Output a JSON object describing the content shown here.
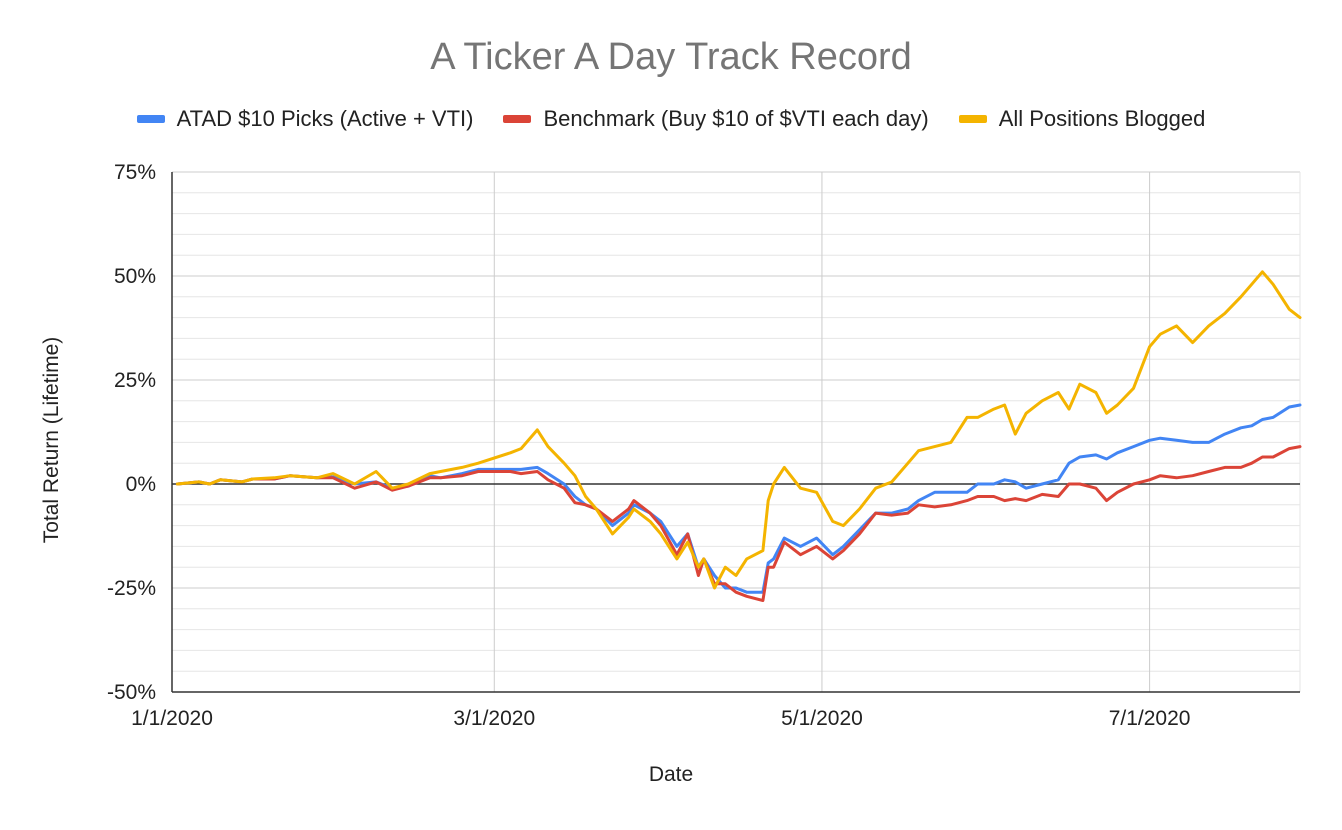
{
  "chart_data": {
    "type": "line",
    "title": "A Ticker A Day Track Record",
    "xlabel": "Date",
    "ylabel": "Total Return (Lifetime)",
    "ylim": [
      -50,
      75
    ],
    "y_ticks": [
      75,
      50,
      25,
      0,
      -25,
      -50
    ],
    "y_tick_labels": [
      "75%",
      "50%",
      "25%",
      "0%",
      "-25%",
      "-50%"
    ],
    "x_ticks": [
      "1/1/2020",
      "3/1/2020",
      "5/1/2020",
      "7/1/2020"
    ],
    "x_range": [
      "2020-01-01",
      "2020-07-29"
    ],
    "grid": true,
    "legend_position": "top",
    "series": [
      {
        "name": "ATAD $10 Picks (Active + VTI)",
        "color": "#4285f4",
        "points": [
          [
            "2020-01-02",
            0
          ],
          [
            "2020-01-06",
            0.5
          ],
          [
            "2020-01-08",
            0
          ],
          [
            "2020-01-10",
            1
          ],
          [
            "2020-01-14",
            0.5
          ],
          [
            "2020-01-16",
            1.2
          ],
          [
            "2020-01-20",
            1.2
          ],
          [
            "2020-01-23",
            2
          ],
          [
            "2020-01-28",
            1.5
          ],
          [
            "2020-01-31",
            1.7
          ],
          [
            "2020-02-04",
            0
          ],
          [
            "2020-02-08",
            0.5
          ],
          [
            "2020-02-11",
            -1
          ],
          [
            "2020-02-14",
            -0.5
          ],
          [
            "2020-02-18",
            2
          ],
          [
            "2020-02-20",
            1.5
          ],
          [
            "2020-02-24",
            2.5
          ],
          [
            "2020-02-27",
            3.5
          ],
          [
            "2020-03-04",
            3.5
          ],
          [
            "2020-03-06",
            3.5
          ],
          [
            "2020-03-09",
            4
          ],
          [
            "2020-03-11",
            2.5
          ],
          [
            "2020-03-14",
            0
          ],
          [
            "2020-03-16",
            -3
          ],
          [
            "2020-03-18",
            -5
          ],
          [
            "2020-03-20",
            -6
          ],
          [
            "2020-03-23",
            -10
          ],
          [
            "2020-03-26",
            -7
          ],
          [
            "2020-03-27",
            -5
          ],
          [
            "2020-03-30",
            -7
          ],
          [
            "2020-04-01",
            -9
          ],
          [
            "2020-04-04",
            -15
          ],
          [
            "2020-04-06",
            -12
          ],
          [
            "2020-04-08",
            -20
          ],
          [
            "2020-04-09",
            -18
          ],
          [
            "2020-04-11",
            -22
          ],
          [
            "2020-04-13",
            -25
          ],
          [
            "2020-04-15",
            -25
          ],
          [
            "2020-04-17",
            -26
          ],
          [
            "2020-04-20",
            -26
          ],
          [
            "2020-04-21",
            -19
          ],
          [
            "2020-04-22",
            -18
          ],
          [
            "2020-04-24",
            -13
          ],
          [
            "2020-04-27",
            -15
          ],
          [
            "2020-04-30",
            -13
          ],
          [
            "2020-05-03",
            -17
          ],
          [
            "2020-05-05",
            -15
          ],
          [
            "2020-05-08",
            -11
          ],
          [
            "2020-05-11",
            -7
          ],
          [
            "2020-05-14",
            -7
          ],
          [
            "2020-05-17",
            -6
          ],
          [
            "2020-05-19",
            -4
          ],
          [
            "2020-05-22",
            -2
          ],
          [
            "2020-05-25",
            -2
          ],
          [
            "2020-05-28",
            -2
          ],
          [
            "2020-05-30",
            0
          ],
          [
            "2020-06-02",
            0
          ],
          [
            "2020-06-04",
            1
          ],
          [
            "2020-06-06",
            0.5
          ],
          [
            "2020-06-08",
            -1
          ],
          [
            "2020-06-11",
            0
          ],
          [
            "2020-06-14",
            1
          ],
          [
            "2020-06-16",
            5
          ],
          [
            "2020-06-18",
            6.5
          ],
          [
            "2020-06-21",
            7
          ],
          [
            "2020-06-23",
            6
          ],
          [
            "2020-06-25",
            7.5
          ],
          [
            "2020-06-28",
            9
          ],
          [
            "2020-07-01",
            10.5
          ],
          [
            "2020-07-03",
            11
          ],
          [
            "2020-07-06",
            10.5
          ],
          [
            "2020-07-09",
            10
          ],
          [
            "2020-07-12",
            10
          ],
          [
            "2020-07-15",
            12
          ],
          [
            "2020-07-18",
            13.5
          ],
          [
            "2020-07-20",
            14
          ],
          [
            "2020-07-22",
            15.5
          ],
          [
            "2020-07-24",
            16
          ],
          [
            "2020-07-27",
            18.5
          ],
          [
            "2020-07-29",
            19
          ]
        ]
      },
      {
        "name": "Benchmark (Buy $10 of $VTI each day)",
        "color": "#db4437",
        "points": [
          [
            "2020-01-02",
            0
          ],
          [
            "2020-01-06",
            0.5
          ],
          [
            "2020-01-08",
            0
          ],
          [
            "2020-01-10",
            1
          ],
          [
            "2020-01-14",
            0.5
          ],
          [
            "2020-01-16",
            1.2
          ],
          [
            "2020-01-20",
            1.2
          ],
          [
            "2020-01-23",
            2
          ],
          [
            "2020-01-28",
            1.5
          ],
          [
            "2020-01-31",
            1.5
          ],
          [
            "2020-02-04",
            -1
          ],
          [
            "2020-02-08",
            0.5
          ],
          [
            "2020-02-11",
            -1.5
          ],
          [
            "2020-02-14",
            -0.5
          ],
          [
            "2020-02-18",
            1.5
          ],
          [
            "2020-02-20",
            1.5
          ],
          [
            "2020-02-24",
            2
          ],
          [
            "2020-02-27",
            3
          ],
          [
            "2020-03-04",
            3
          ],
          [
            "2020-03-06",
            2.5
          ],
          [
            "2020-03-09",
            3
          ],
          [
            "2020-03-11",
            1
          ],
          [
            "2020-03-14",
            -1
          ],
          [
            "2020-03-16",
            -4.5
          ],
          [
            "2020-03-18",
            -5
          ],
          [
            "2020-03-20",
            -6
          ],
          [
            "2020-03-23",
            -9
          ],
          [
            "2020-03-26",
            -6
          ],
          [
            "2020-03-27",
            -4
          ],
          [
            "2020-03-30",
            -7
          ],
          [
            "2020-04-01",
            -10
          ],
          [
            "2020-04-04",
            -17
          ],
          [
            "2020-04-06",
            -12
          ],
          [
            "2020-04-08",
            -22
          ],
          [
            "2020-04-09",
            -18
          ],
          [
            "2020-04-11",
            -24
          ],
          [
            "2020-04-13",
            -24
          ],
          [
            "2020-04-15",
            -26
          ],
          [
            "2020-04-17",
            -27
          ],
          [
            "2020-04-20",
            -28
          ],
          [
            "2020-04-21",
            -20
          ],
          [
            "2020-04-22",
            -20
          ],
          [
            "2020-04-24",
            -14
          ],
          [
            "2020-04-27",
            -17
          ],
          [
            "2020-04-30",
            -15
          ],
          [
            "2020-05-03",
            -18
          ],
          [
            "2020-05-05",
            -16
          ],
          [
            "2020-05-08",
            -12
          ],
          [
            "2020-05-11",
            -7
          ],
          [
            "2020-05-14",
            -7.5
          ],
          [
            "2020-05-17",
            -7
          ],
          [
            "2020-05-19",
            -5
          ],
          [
            "2020-05-22",
            -5.5
          ],
          [
            "2020-05-25",
            -5
          ],
          [
            "2020-05-28",
            -4
          ],
          [
            "2020-05-30",
            -3
          ],
          [
            "2020-06-02",
            -3
          ],
          [
            "2020-06-04",
            -4
          ],
          [
            "2020-06-06",
            -3.5
          ],
          [
            "2020-06-08",
            -4
          ],
          [
            "2020-06-11",
            -2.5
          ],
          [
            "2020-06-14",
            -3
          ],
          [
            "2020-06-16",
            0
          ],
          [
            "2020-06-18",
            0
          ],
          [
            "2020-06-21",
            -1
          ],
          [
            "2020-06-23",
            -4
          ],
          [
            "2020-06-25",
            -2
          ],
          [
            "2020-06-28",
            0
          ],
          [
            "2020-07-01",
            1
          ],
          [
            "2020-07-03",
            2
          ],
          [
            "2020-07-06",
            1.5
          ],
          [
            "2020-07-09",
            2
          ],
          [
            "2020-07-12",
            3
          ],
          [
            "2020-07-15",
            4
          ],
          [
            "2020-07-18",
            4
          ],
          [
            "2020-07-20",
            5
          ],
          [
            "2020-07-22",
            6.5
          ],
          [
            "2020-07-24",
            6.5
          ],
          [
            "2020-07-27",
            8.5
          ],
          [
            "2020-07-29",
            9
          ]
        ]
      },
      {
        "name": "All Positions Blogged",
        "color": "#f4b400",
        "points": [
          [
            "2020-01-02",
            0
          ],
          [
            "2020-01-06",
            0.5
          ],
          [
            "2020-01-08",
            0
          ],
          [
            "2020-01-10",
            1
          ],
          [
            "2020-01-14",
            0.5
          ],
          [
            "2020-01-16",
            1.2
          ],
          [
            "2020-01-20",
            1.5
          ],
          [
            "2020-01-23",
            2
          ],
          [
            "2020-01-28",
            1.5
          ],
          [
            "2020-01-31",
            2.5
          ],
          [
            "2020-02-04",
            0
          ],
          [
            "2020-02-08",
            3
          ],
          [
            "2020-02-11",
            -1
          ],
          [
            "2020-02-14",
            0
          ],
          [
            "2020-02-18",
            2.5
          ],
          [
            "2020-02-20",
            3
          ],
          [
            "2020-02-24",
            4
          ],
          [
            "2020-02-27",
            5
          ],
          [
            "2020-03-04",
            7.5
          ],
          [
            "2020-03-06",
            8.5
          ],
          [
            "2020-03-09",
            13
          ],
          [
            "2020-03-11",
            9
          ],
          [
            "2020-03-14",
            5
          ],
          [
            "2020-03-16",
            2
          ],
          [
            "2020-03-18",
            -3
          ],
          [
            "2020-03-20",
            -6
          ],
          [
            "2020-03-23",
            -12
          ],
          [
            "2020-03-26",
            -8
          ],
          [
            "2020-03-27",
            -6
          ],
          [
            "2020-03-30",
            -9
          ],
          [
            "2020-04-01",
            -12
          ],
          [
            "2020-04-04",
            -18
          ],
          [
            "2020-04-06",
            -14
          ],
          [
            "2020-04-08",
            -20
          ],
          [
            "2020-04-09",
            -18
          ],
          [
            "2020-04-11",
            -25
          ],
          [
            "2020-04-13",
            -20
          ],
          [
            "2020-04-15",
            -22
          ],
          [
            "2020-04-17",
            -18
          ],
          [
            "2020-04-20",
            -16
          ],
          [
            "2020-04-21",
            -4
          ],
          [
            "2020-04-22",
            0
          ],
          [
            "2020-04-24",
            4
          ],
          [
            "2020-04-27",
            -1
          ],
          [
            "2020-04-30",
            -2
          ],
          [
            "2020-05-03",
            -9
          ],
          [
            "2020-05-05",
            -10
          ],
          [
            "2020-05-08",
            -6
          ],
          [
            "2020-05-11",
            -1
          ],
          [
            "2020-05-14",
            0.5
          ],
          [
            "2020-05-17",
            5
          ],
          [
            "2020-05-19",
            8
          ],
          [
            "2020-05-22",
            9
          ],
          [
            "2020-05-25",
            10
          ],
          [
            "2020-05-28",
            16
          ],
          [
            "2020-05-30",
            16
          ],
          [
            "2020-06-02",
            18
          ],
          [
            "2020-06-04",
            19
          ],
          [
            "2020-06-06",
            12
          ],
          [
            "2020-06-08",
            17
          ],
          [
            "2020-06-11",
            20
          ],
          [
            "2020-06-14",
            22
          ],
          [
            "2020-06-16",
            18
          ],
          [
            "2020-06-18",
            24
          ],
          [
            "2020-06-21",
            22
          ],
          [
            "2020-06-23",
            17
          ],
          [
            "2020-06-25",
            19
          ],
          [
            "2020-06-28",
            23
          ],
          [
            "2020-07-01",
            33
          ],
          [
            "2020-07-03",
            36
          ],
          [
            "2020-07-06",
            38
          ],
          [
            "2020-07-09",
            34
          ],
          [
            "2020-07-12",
            38
          ],
          [
            "2020-07-15",
            41
          ],
          [
            "2020-07-18",
            45
          ],
          [
            "2020-07-20",
            48
          ],
          [
            "2020-07-22",
            51
          ],
          [
            "2020-07-24",
            48
          ],
          [
            "2020-07-27",
            42
          ],
          [
            "2020-07-29",
            40
          ]
        ]
      }
    ]
  }
}
